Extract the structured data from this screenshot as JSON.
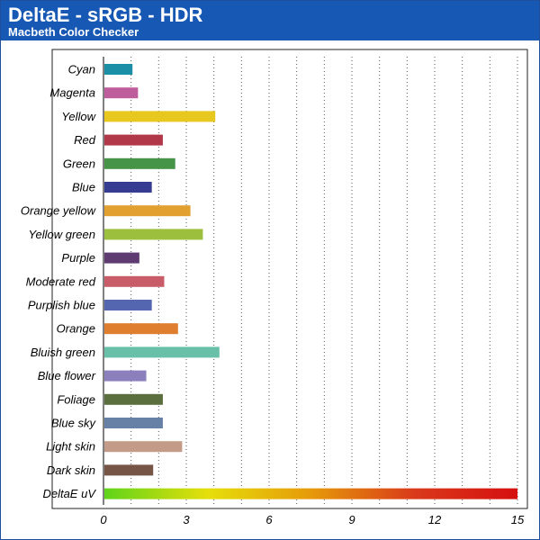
{
  "title": "DeltaE - sRGB - HDR",
  "subtitle": "Macbeth Color Checker",
  "colors": {
    "header": "#1658b4",
    "plot_border": "#222222",
    "gridline": "#555555"
  },
  "chart_data": {
    "type": "bar",
    "orientation": "horizontal",
    "title": "DeltaE - sRGB - HDR",
    "subtitle": "Macbeth Color Checker",
    "xlabel": "",
    "ylabel": "",
    "xlim": [
      0,
      15
    ],
    "xticks": [
      "0",
      "3",
      "6",
      "9",
      "12",
      "15"
    ],
    "xtick_values": [
      0,
      3,
      6,
      9,
      12,
      15
    ],
    "grid": "vertical-dotted",
    "categories": [
      "Cyan",
      "Magenta",
      "Yellow",
      "Red",
      "Green",
      "Blue",
      "Orange yellow",
      "Yellow green",
      "Purple",
      "Moderate red",
      "Purplish blue",
      "Orange",
      "Bluish green",
      "Blue flower",
      "Foliage",
      "Blue sky",
      "Light skin",
      "Dark skin",
      "DeltaE uV"
    ],
    "values": [
      1.05,
      1.25,
      4.05,
      2.15,
      2.6,
      1.75,
      3.15,
      3.6,
      1.3,
      2.2,
      1.75,
      2.7,
      4.2,
      1.55,
      2.15,
      2.15,
      2.85,
      1.8,
      15
    ],
    "bar_colors": [
      "#1a8fa5",
      "#bf5c9c",
      "#e8c81e",
      "#b03848",
      "#469448",
      "#353c92",
      "#e2a030",
      "#9cc03e",
      "#5e3c72",
      "#c85c68",
      "#5466b0",
      "#de7e2e",
      "#68c0a8",
      "#8c80bc",
      "#5a6e3e",
      "#6680a6",
      "#c49a88",
      "#765446",
      "gradient"
    ],
    "gradient_stops": [
      "#5fd41a",
      "#e6df0a",
      "#e69a0a",
      "#d93a1a",
      "#d60f10"
    ]
  }
}
